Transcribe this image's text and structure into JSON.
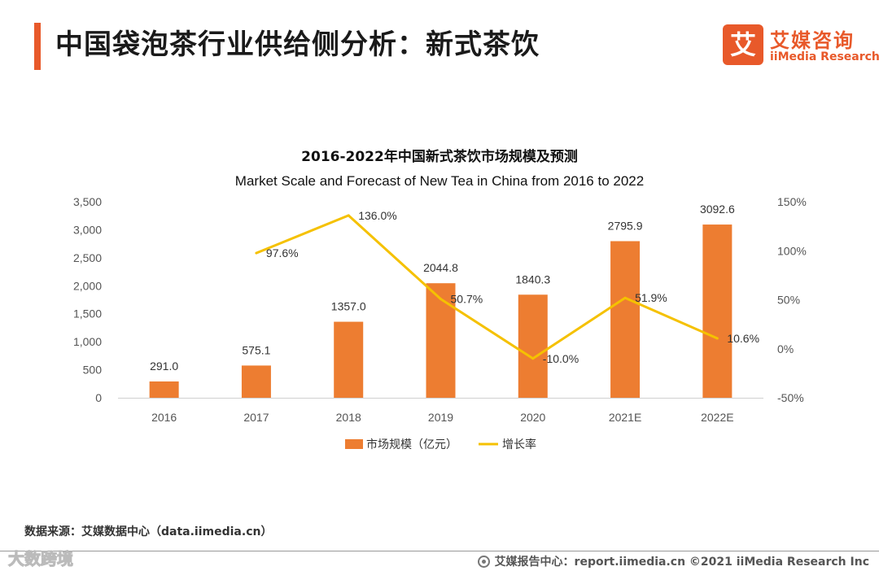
{
  "header": {
    "title": "中国袋泡茶行业供给侧分析：新式茶饮",
    "logo_cn": "艾媒咨询",
    "logo_en": "iiMedia Research",
    "logo_mark": "艾",
    "accent_color": "#e8592a"
  },
  "chart_data": {
    "type": "bar+line",
    "title": "2016-2022年中国新式茶饮市场规模及预测",
    "subtitle": "Market Scale and Forecast of New Tea in China from 2016 to 2022",
    "categories": [
      "2016",
      "2017",
      "2018",
      "2019",
      "2020",
      "2021E",
      "2022E"
    ],
    "series": [
      {
        "name": "市场规模（亿元）",
        "kind": "bar",
        "axis": "left",
        "color": "#ed7d31",
        "values": [
          291.0,
          575.1,
          1357.0,
          2044.8,
          1840.3,
          2795.9,
          3092.6
        ],
        "labels": [
          "291.0",
          "575.1",
          "1357.0",
          "2044.8",
          "1840.3",
          "2795.9",
          "3092.6"
        ]
      },
      {
        "name": "增长率",
        "kind": "line",
        "axis": "right",
        "color": "#f5c100",
        "values": [
          null,
          97.6,
          136.0,
          50.7,
          -10.0,
          51.9,
          10.6
        ],
        "labels": [
          "",
          "97.6%",
          "136.0%",
          "50.7%",
          "-10.0%",
          "51.9%",
          "10.6%"
        ]
      }
    ],
    "left_axis": {
      "min": 0,
      "max": 3500,
      "ticks": [
        0,
        500,
        1000,
        1500,
        2000,
        2500,
        3000,
        3500
      ],
      "tick_labels": [
        "0",
        "500",
        "1,000",
        "1,500",
        "2,000",
        "2,500",
        "3,000",
        "3,500"
      ]
    },
    "right_axis": {
      "min": -50,
      "max": 150,
      "ticks": [
        -50,
        0,
        50,
        100,
        150
      ],
      "tick_labels": [
        "-50%",
        "0%",
        "50%",
        "100%",
        "150%"
      ]
    },
    "legend": {
      "position": "bottom"
    }
  },
  "footer": {
    "source": "数据来源：艾媒数据中心（data.iimedia.cn）",
    "report": "艾媒报告中心：report.iimedia.cn  ©2021  iiMedia Research  Inc",
    "watermark": "大数跨境"
  }
}
